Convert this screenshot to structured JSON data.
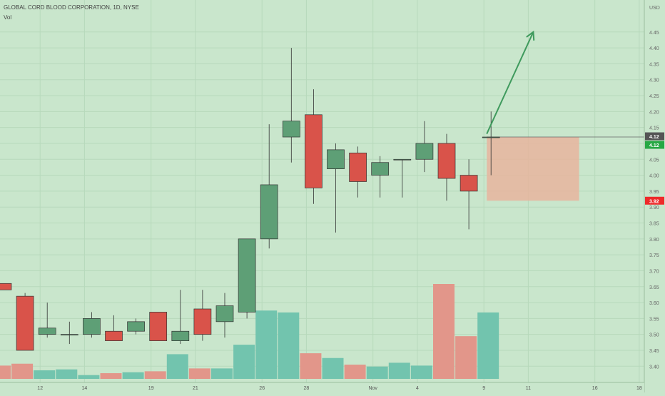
{
  "legend": {
    "symbol_line": "GLOBAL CORD BLOOD CORPORATION, 1D, NYSE",
    "volume_label": "Vol"
  },
  "colors": {
    "background": "#c9e6cc",
    "grid": "#b7d9bb",
    "up": "#5e9f76",
    "down": "#d9534a",
    "vol_up": "#72c4ae",
    "vol_down": "#e2968a",
    "zone": "#e8b49e",
    "arrow": "#3f9a5d",
    "price_badge_dark": "#555555",
    "price_badge_green": "#27a844",
    "price_badge_red": "#ee2a2a"
  },
  "chart_data": {
    "type": "candlestick",
    "title": "GLOBAL CORD BLOOD CORPORATION, 1D, NYSE",
    "currency": "USD",
    "y_range": [
      3.385,
      4.51
    ],
    "y_ticks": [
      3.4,
      3.45,
      3.5,
      3.55,
      3.6,
      3.65,
      3.7,
      3.75,
      3.8,
      3.85,
      3.9,
      3.95,
      4.0,
      4.05,
      4.1,
      4.15,
      4.2,
      4.25,
      4.3,
      4.35,
      4.4,
      4.45
    ],
    "x_ticks": [
      "12",
      "14",
      "19",
      "21",
      "26",
      "28",
      "Nov",
      "4",
      "9",
      "11",
      "16",
      "18"
    ],
    "candles": [
      {
        "o": 3.66,
        "h": 3.66,
        "l": 3.64,
        "c": 3.64,
        "v": 0.14
      },
      {
        "o": 3.62,
        "h": 3.63,
        "l": 3.45,
        "c": 3.45,
        "v": 0.16
      },
      {
        "o": 3.5,
        "h": 3.6,
        "l": 3.49,
        "c": 3.52,
        "v": 0.09
      },
      {
        "o": 3.5,
        "h": 3.54,
        "l": 3.47,
        "c": 3.5,
        "v": 0.1
      },
      {
        "o": 3.5,
        "h": 3.57,
        "l": 3.49,
        "c": 3.55,
        "v": 0.04
      },
      {
        "o": 3.51,
        "h": 3.56,
        "l": 3.48,
        "c": 3.48,
        "v": 0.06
      },
      {
        "o": 3.51,
        "h": 3.55,
        "l": 3.5,
        "c": 3.54,
        "v": 0.07
      },
      {
        "o": 3.57,
        "h": 3.57,
        "l": 3.48,
        "c": 3.48,
        "v": 0.08
      },
      {
        "o": 3.48,
        "h": 3.64,
        "l": 3.47,
        "c": 3.51,
        "v": 0.26
      },
      {
        "o": 3.58,
        "h": 3.64,
        "l": 3.48,
        "c": 3.5,
        "v": 0.11
      },
      {
        "o": 3.54,
        "h": 3.63,
        "l": 3.49,
        "c": 3.59,
        "v": 0.11
      },
      {
        "o": 3.57,
        "h": 3.8,
        "l": 3.55,
        "c": 3.8,
        "v": 0.36
      },
      {
        "o": 3.8,
        "h": 4.16,
        "l": 3.77,
        "c": 3.97,
        "v": 0.72
      },
      {
        "o": 4.12,
        "h": 4.4,
        "l": 4.04,
        "c": 4.17,
        "v": 0.7
      },
      {
        "o": 4.19,
        "h": 4.27,
        "l": 3.91,
        "c": 3.96,
        "v": 0.27
      },
      {
        "o": 4.02,
        "h": 4.1,
        "l": 3.82,
        "c": 4.08,
        "v": 0.22
      },
      {
        "o": 4.07,
        "h": 4.09,
        "l": 3.93,
        "c": 3.98,
        "v": 0.15
      },
      {
        "o": 4.0,
        "h": 4.06,
        "l": 3.93,
        "c": 4.04,
        "v": 0.13
      },
      {
        "o": 4.05,
        "h": 4.05,
        "l": 3.93,
        "c": 4.05,
        "v": 0.17
      },
      {
        "o": 4.05,
        "h": 4.17,
        "l": 4.01,
        "c": 4.1,
        "v": 0.14
      },
      {
        "o": 4.1,
        "h": 4.13,
        "l": 3.92,
        "c": 3.99,
        "v": 1.0
      },
      {
        "o": 4.0,
        "h": 4.05,
        "l": 3.83,
        "c": 3.95,
        "v": 0.45
      },
      {
        "o": 4.12,
        "h": 4.2,
        "l": 4.0,
        "c": 4.12,
        "v": 0.7
      }
    ],
    "volume_unit": "relative to tallest bar",
    "annotations": {
      "price_labels": [
        "4.12",
        "4.12",
        "3.92"
      ],
      "zone_low": 3.92,
      "zone_high": 4.12,
      "arrow_from": 4.13,
      "arrow_to": 4.45
    }
  }
}
